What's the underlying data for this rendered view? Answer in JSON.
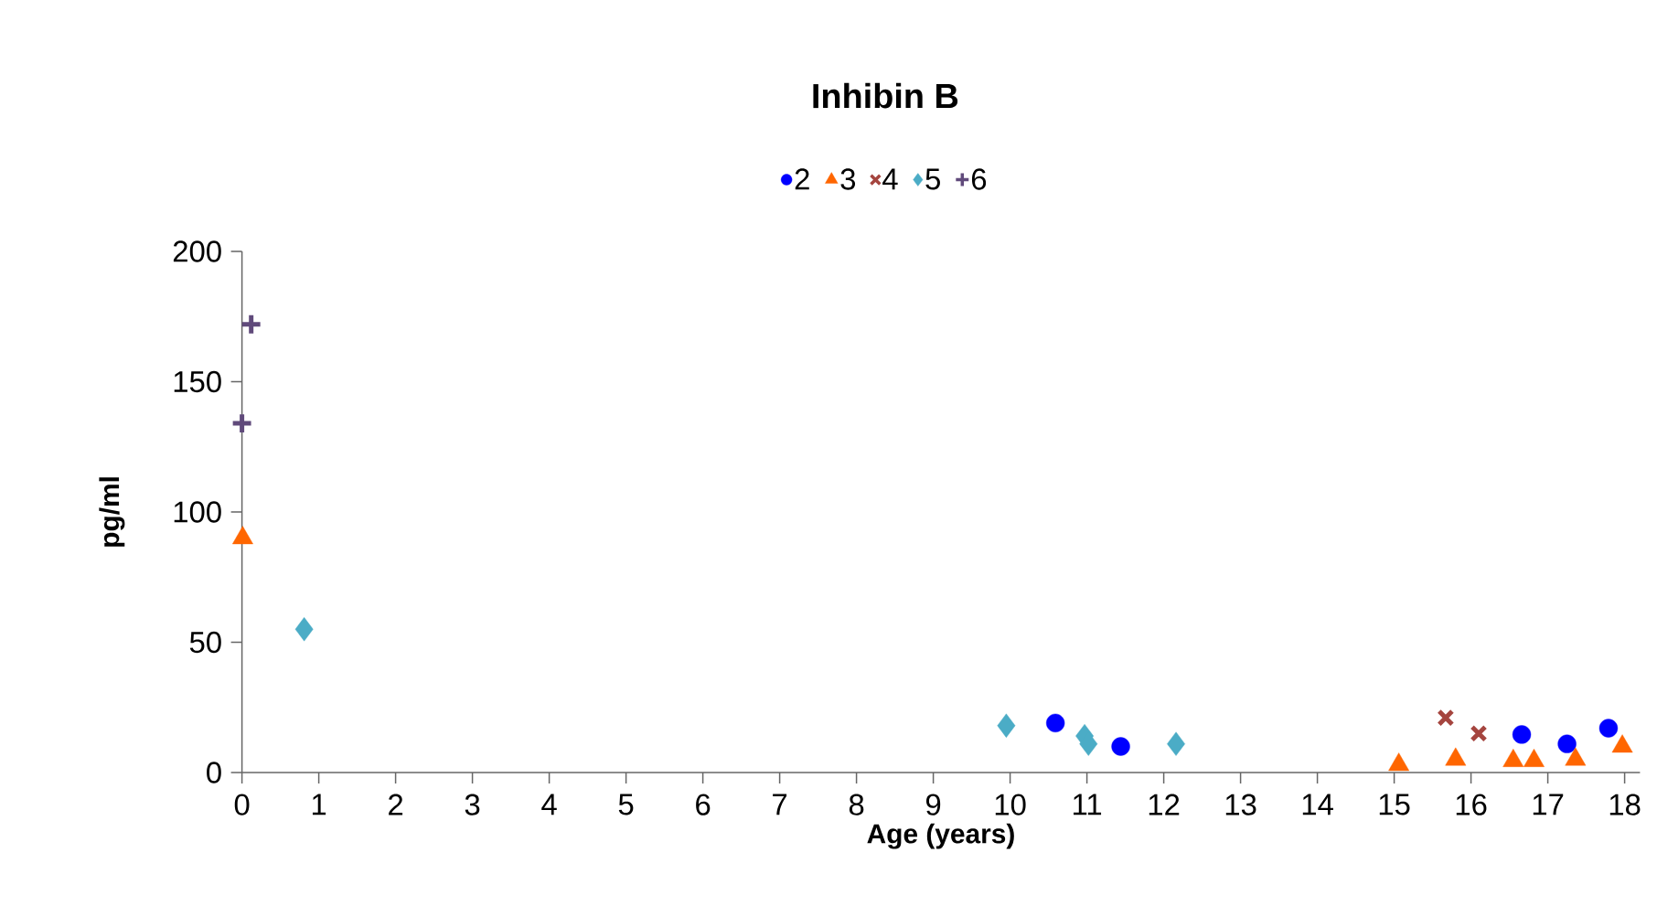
{
  "chart_data": {
    "type": "scatter",
    "title": "Inhibin B",
    "xlabel": "Age (years)",
    "ylabel": "pg/ml",
    "xlim": [
      0,
      18.2
    ],
    "xticks": [
      0,
      1,
      2,
      3,
      4,
      5,
      6,
      7,
      8,
      9,
      10,
      11,
      12,
      13,
      14,
      15,
      16,
      17,
      18
    ],
    "ylim": [
      0,
      200
    ],
    "yticks": [
      0,
      50,
      100,
      150,
      200
    ],
    "grid": false,
    "legend": "top",
    "series": [
      {
        "name": "2",
        "color": "#0000ff",
        "marker": "circle",
        "x": [
          10.59,
          11.44,
          16.66,
          17.25,
          17.79
        ],
        "values": [
          19,
          10,
          14.6,
          11,
          17
        ]
      },
      {
        "name": "3",
        "color": "#ff6600",
        "marker": "triangle",
        "x": [
          0.01,
          15.06,
          15.8,
          16.55,
          16.82,
          17.36,
          17.97
        ],
        "values": [
          90,
          3,
          5,
          4.5,
          4.5,
          5,
          10
        ]
      },
      {
        "name": "4",
        "color": "#a5453f",
        "marker": "cross",
        "x": [
          15.67,
          16.1
        ],
        "values": [
          21,
          15
        ]
      },
      {
        "name": "5",
        "color": "#4bacc6",
        "marker": "diamond",
        "x": [
          0.81,
          9.95,
          10.97,
          11.02,
          12.16
        ],
        "values": [
          55,
          18,
          14,
          11,
          11
        ]
      },
      {
        "name": "6",
        "color": "#604a7b",
        "marker": "plus",
        "x": [
          0.12,
          0
        ],
        "values": [
          172,
          134
        ]
      }
    ]
  }
}
